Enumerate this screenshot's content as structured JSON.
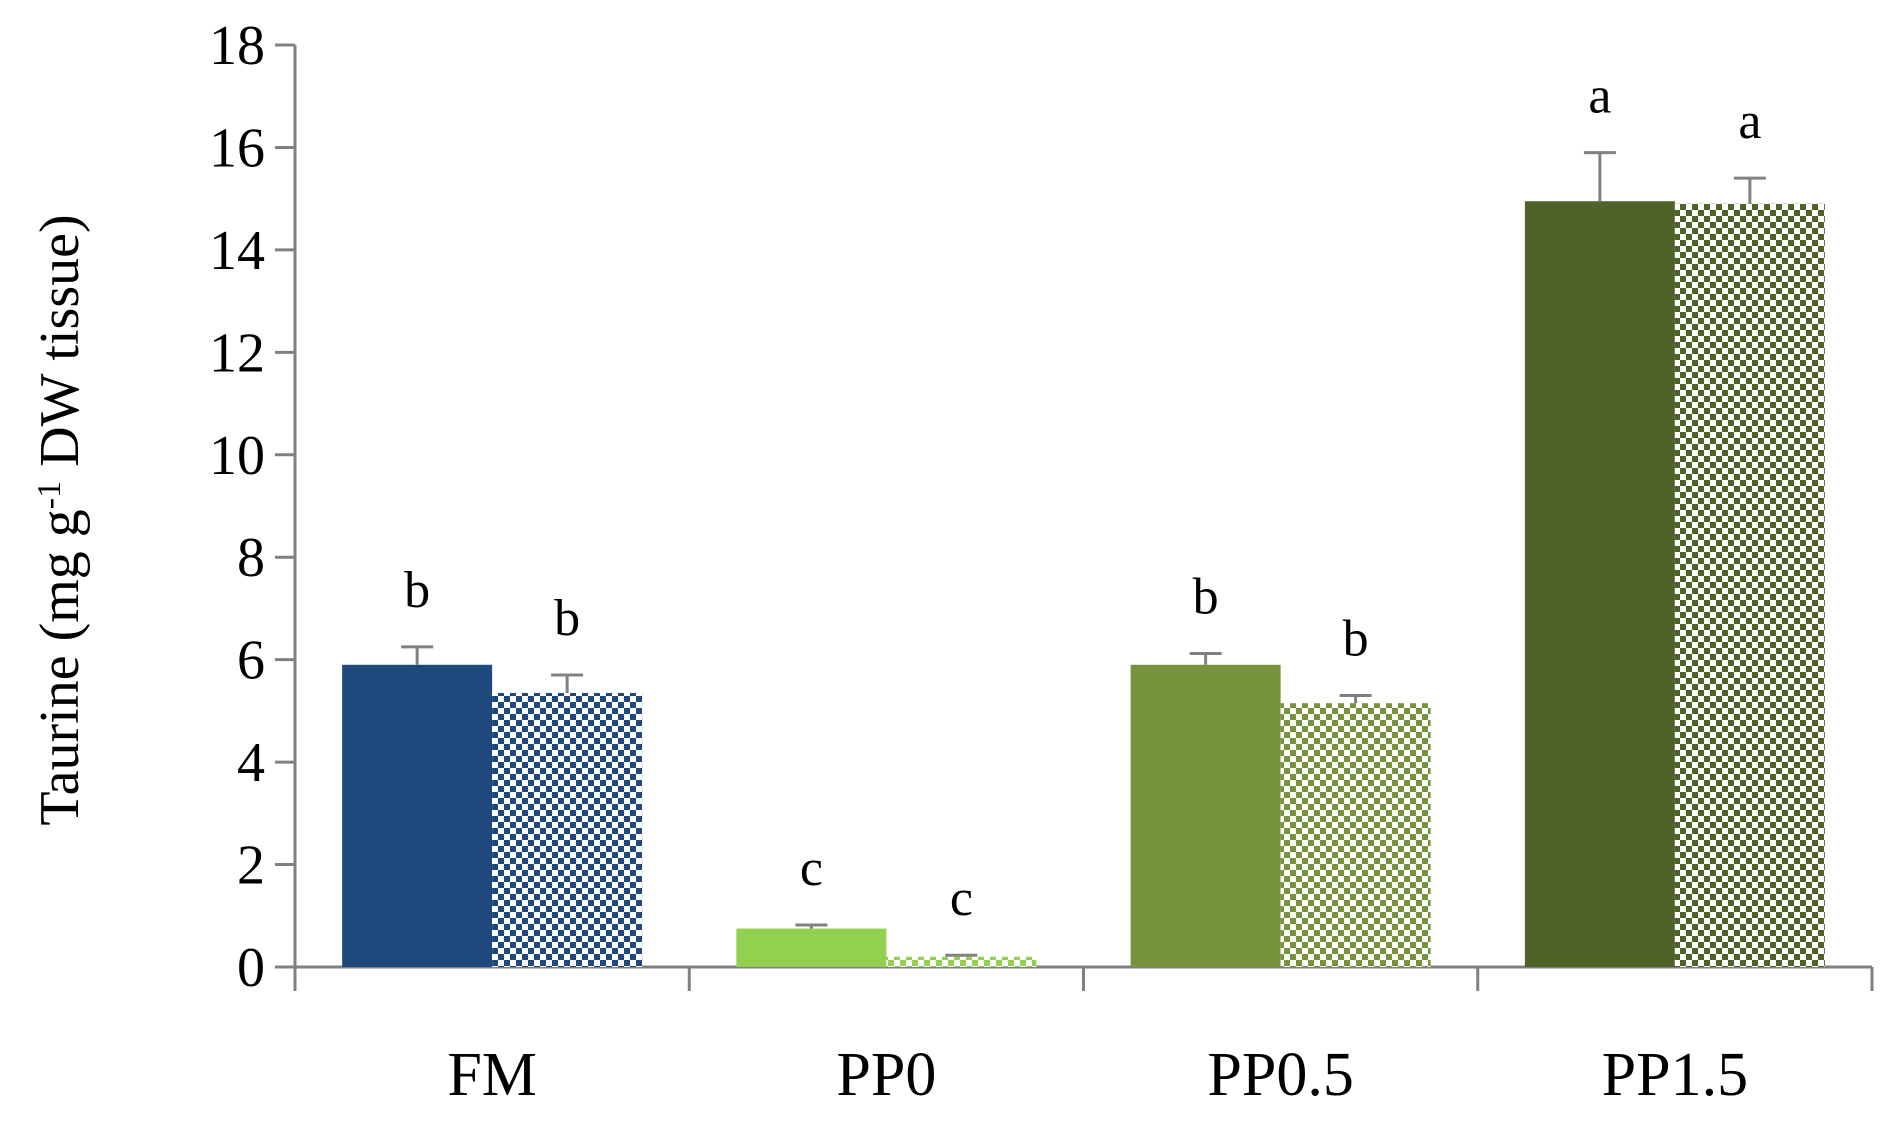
{
  "chart_data": {
    "type": "bar",
    "title": "",
    "xlabel": "",
    "ylabel": "Taurine (mg g-1 DW tissue)",
    "ylabel_parts": {
      "before": "Taurine (mg g",
      "superscript": "-1",
      "after": " DW tissue)"
    },
    "ylim": [
      0,
      18
    ],
    "yticks": [
      0,
      2,
      4,
      6,
      8,
      10,
      12,
      14,
      16,
      18
    ],
    "categories": [
      "FM",
      "PP0",
      "PP0.5",
      "PP1.5"
    ],
    "grid": false,
    "legend": "none",
    "series": [
      {
        "name": "solid",
        "pattern": "solid",
        "values": [
          5.9,
          0.75,
          5.9,
          14.95
        ],
        "errors": [
          0.35,
          0.07,
          0.22,
          0.95
        ],
        "labels": [
          "b",
          "c",
          "b",
          "a"
        ]
      },
      {
        "name": "patterned",
        "pattern": "checker",
        "values": [
          5.35,
          0.2,
          5.15,
          14.9
        ],
        "errors": [
          0.35,
          0.03,
          0.15,
          0.5
        ],
        "labels": [
          "b",
          "c",
          "b",
          "a"
        ]
      }
    ],
    "colors": [
      "#1f497d",
      "#92d050",
      "#77933c",
      "#4f6228"
    ],
    "axis_color": "#808080",
    "error_bar_color": "#808080"
  }
}
